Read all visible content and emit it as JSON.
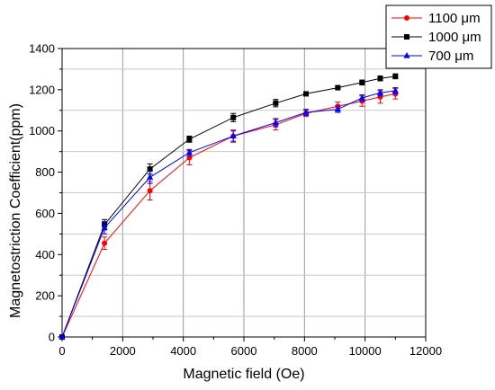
{
  "chart_data": {
    "type": "line",
    "xlabel": "Magnetic field (Oe)",
    "ylabel": "Magnetostriction Coefficient(ppm)",
    "xlim": [
      0,
      12000
    ],
    "ylim": [
      0,
      1400
    ],
    "xticks": [
      0,
      2000,
      4000,
      6000,
      8000,
      10000,
      12000
    ],
    "yticks": [
      0,
      200,
      400,
      600,
      800,
      1000,
      1200,
      1400
    ],
    "x_major_grid": true,
    "y_minor_grid": true,
    "legend_position": "top-right",
    "series": [
      {
        "name": "1100 μm",
        "color": "#ff0000",
        "marker": "circle",
        "x": [
          0,
          1400,
          2900,
          4200,
          5650,
          7050,
          8050,
          9100,
          9900,
          10500,
          11000
        ],
        "y": [
          0,
          455,
          710,
          870,
          975,
          1030,
          1085,
          1120,
          1145,
          1165,
          1180
        ],
        "err": [
          0,
          30,
          45,
          35,
          30,
          25,
          15,
          20,
          25,
          30,
          25
        ]
      },
      {
        "name": "1000 μm",
        "color": "#000000",
        "marker": "square",
        "x": [
          0,
          1400,
          2900,
          4200,
          5650,
          7050,
          8050,
          9100,
          9900,
          10500,
          11000
        ],
        "y": [
          0,
          545,
          815,
          960,
          1065,
          1135,
          1180,
          1210,
          1235,
          1255,
          1265
        ],
        "err": [
          0,
          25,
          25,
          15,
          20,
          18,
          8,
          8,
          12,
          12,
          12
        ]
      },
      {
        "name": "700 μm",
        "color": "#0000ff",
        "marker": "triangle",
        "x": [
          0,
          1400,
          2900,
          4200,
          5650,
          7050,
          8050,
          9100,
          9900,
          10500,
          11000
        ],
        "y": [
          0,
          530,
          775,
          895,
          975,
          1040,
          1090,
          1105,
          1160,
          1185,
          1195
        ],
        "err": [
          0,
          30,
          30,
          15,
          25,
          20,
          15,
          15,
          15,
          15,
          15
        ]
      }
    ]
  }
}
